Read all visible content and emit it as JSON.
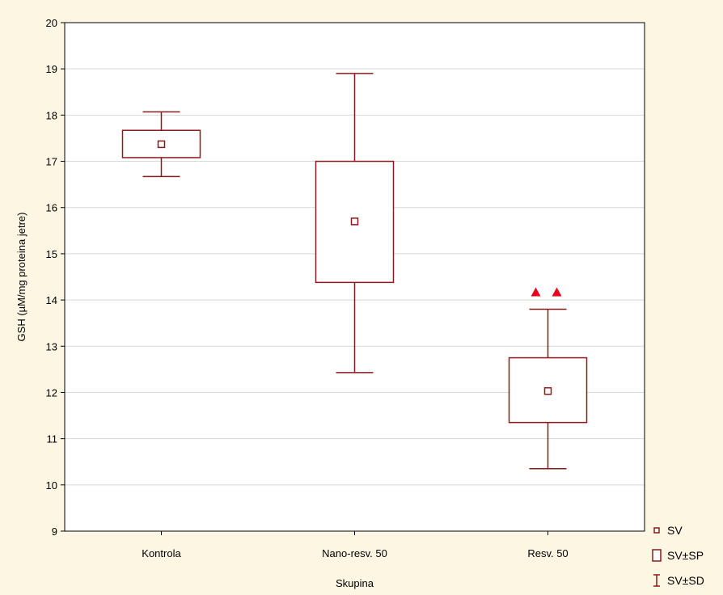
{
  "chart_data": {
    "type": "box",
    "title": "",
    "xlabel": "Skupina",
    "ylabel": "GSH (µM/mg proteina jetre)",
    "ylim": [
      9,
      20
    ],
    "yticks": [
      "9",
      "10",
      "11",
      "12",
      "13",
      "14",
      "15",
      "16",
      "17",
      "18",
      "19",
      "20"
    ],
    "grid": true,
    "categories": [
      "Kontrola",
      "Nano-resv. 50",
      "Resv. 50"
    ],
    "series": [
      {
        "category": "Kontrola",
        "mean": 17.37,
        "se_low": 17.08,
        "se_high": 17.67,
        "sd_low": 16.67,
        "sd_high": 18.07
      },
      {
        "category": "Nano-resv. 50",
        "mean": 15.7,
        "se_low": 14.38,
        "se_high": 17.0,
        "sd_low": 12.43,
        "sd_high": 18.9
      },
      {
        "category": "Resv. 50",
        "mean": 12.03,
        "se_low": 11.35,
        "se_high": 12.75,
        "sd_low": 10.35,
        "sd_high": 13.8
      }
    ],
    "annotations": [
      {
        "category": "Resv. 50",
        "marker": "triangle",
        "count": 2,
        "color": "#e8001c"
      }
    ],
    "legend": {
      "placement": "bottom-right",
      "items": [
        {
          "symbol": "small-square",
          "label": "SV"
        },
        {
          "symbol": "box",
          "label": "SV±SP"
        },
        {
          "symbol": "whisker",
          "label": "SV±SD"
        }
      ]
    },
    "colors": {
      "box": "#8b1a1a",
      "background": "#fdf6e3",
      "plot": "#ffffff",
      "grid": "#d8d8d8",
      "marker": "#e8001c"
    }
  }
}
